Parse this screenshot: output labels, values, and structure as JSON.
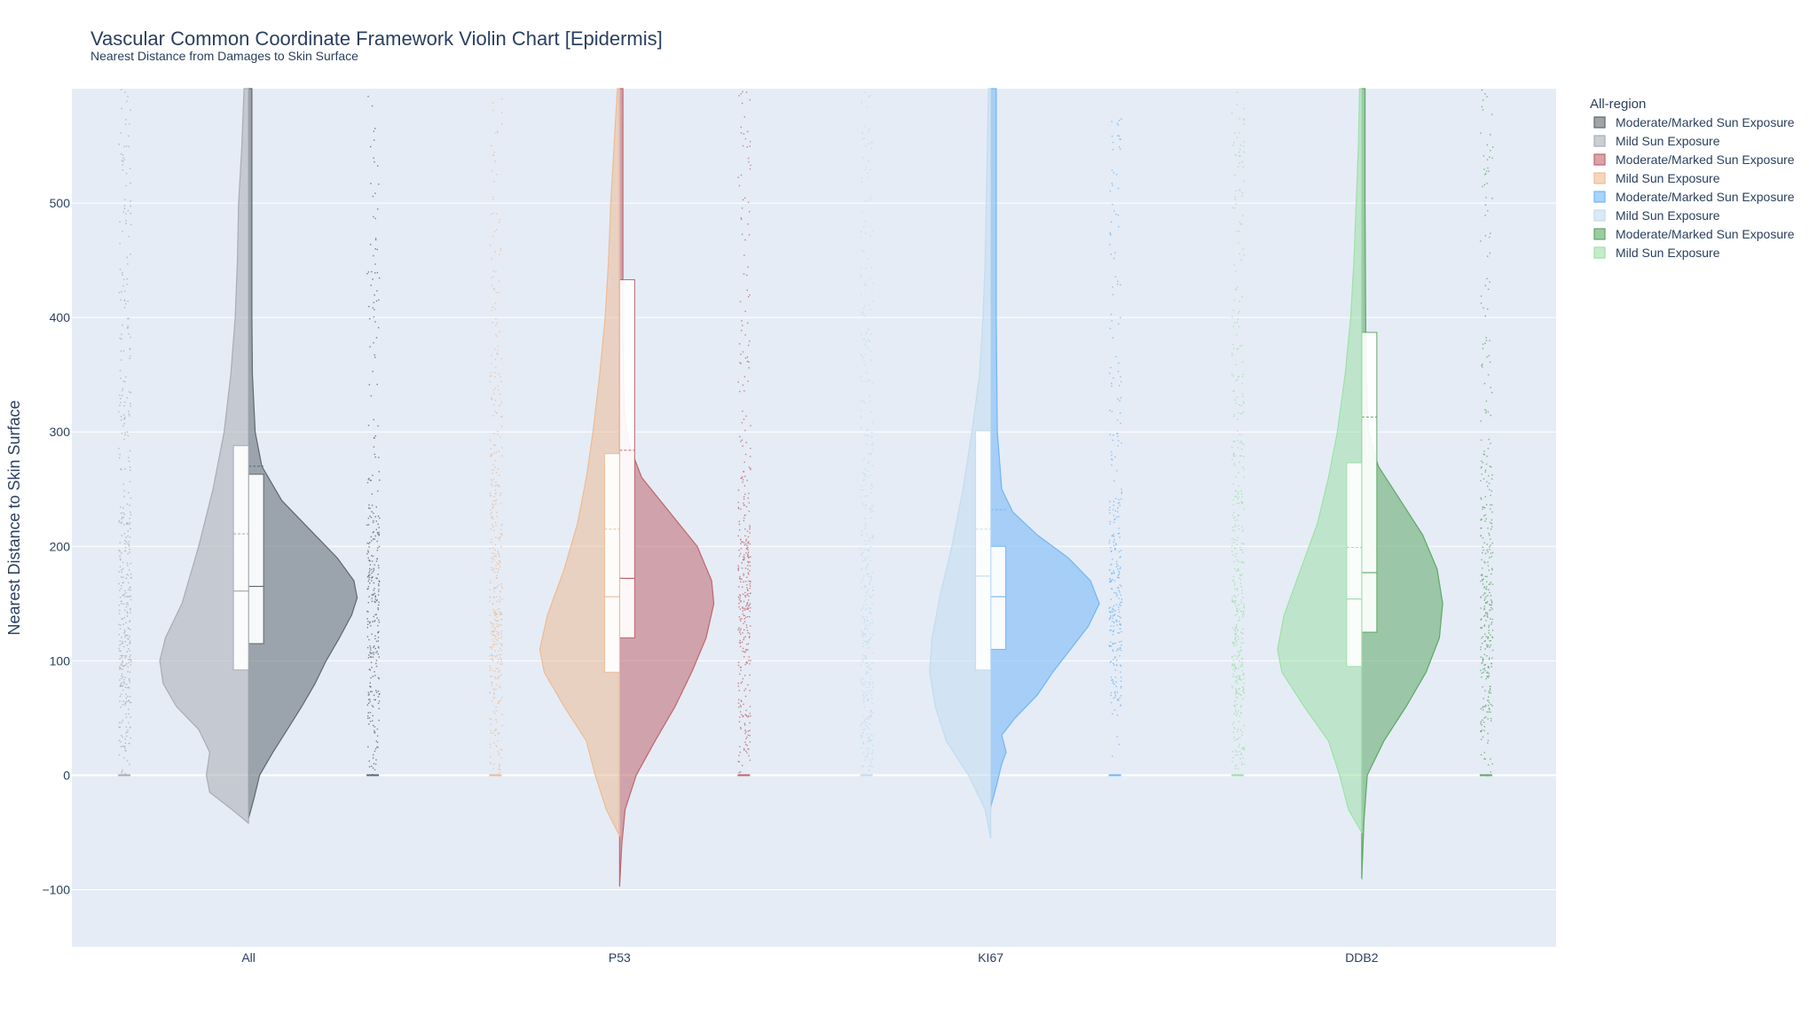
{
  "chart_data": {
    "type": "violin",
    "title": "Vascular Common Coordinate Framework Violin Chart [Epidermis]",
    "subtitle": "Nearest Distance from Damages to Skin Surface",
    "xlabel": "",
    "ylabel": "Nearest Distance to Skin Surface",
    "ylim": [
      -150,
      600
    ],
    "yticks": [
      -100,
      0,
      100,
      200,
      300,
      400,
      500
    ],
    "ytick_labels": [
      "−100",
      "0",
      "100",
      "200",
      "300",
      "400",
      "500"
    ],
    "categories": [
      "All",
      "P53",
      "KI67",
      "DDB2"
    ],
    "grid": true,
    "legend": {
      "title": "All-region",
      "position": "right"
    },
    "series": [
      {
        "name": "Moderate/Marked Sun Exposure",
        "category": "All",
        "side": "positive",
        "color": "#5f6770",
        "box": {
          "q1": 115,
          "median": 165,
          "q3": 263,
          "mean": 270
        },
        "range": [
          -38,
          600
        ],
        "density": [
          [
            -38,
            0.0
          ],
          [
            -20,
            0.05
          ],
          [
            0,
            0.1
          ],
          [
            20,
            0.22
          ],
          [
            40,
            0.35
          ],
          [
            60,
            0.48
          ],
          [
            80,
            0.6
          ],
          [
            100,
            0.7
          ],
          [
            120,
            0.82
          ],
          [
            140,
            0.93
          ],
          [
            155,
            0.98
          ],
          [
            170,
            0.95
          ],
          [
            190,
            0.8
          ],
          [
            210,
            0.6
          ],
          [
            240,
            0.3
          ],
          [
            270,
            0.12
          ],
          [
            300,
            0.06
          ],
          [
            350,
            0.035
          ],
          [
            400,
            0.03
          ],
          [
            450,
            0.03
          ],
          [
            500,
            0.03
          ],
          [
            550,
            0.03
          ],
          [
            600,
            0.03
          ]
        ]
      },
      {
        "name": "Mild Sun Exposure",
        "category": "All",
        "side": "negative",
        "color": "#a9adb4",
        "box": {
          "q1": 92,
          "median": 161,
          "q3": 288,
          "mean": 211
        },
        "range": [
          -42,
          600
        ],
        "density": [
          [
            -42,
            0.0
          ],
          [
            -30,
            0.15
          ],
          [
            -15,
            0.35
          ],
          [
            0,
            0.38
          ],
          [
            20,
            0.35
          ],
          [
            40,
            0.45
          ],
          [
            60,
            0.65
          ],
          [
            80,
            0.77
          ],
          [
            100,
            0.8
          ],
          [
            120,
            0.75
          ],
          [
            150,
            0.6
          ],
          [
            200,
            0.45
          ],
          [
            250,
            0.32
          ],
          [
            300,
            0.22
          ],
          [
            350,
            0.16
          ],
          [
            400,
            0.12
          ],
          [
            450,
            0.1
          ],
          [
            500,
            0.09
          ],
          [
            550,
            0.06
          ],
          [
            600,
            0.04
          ]
        ]
      },
      {
        "name": "Moderate/Marked Sun Exposure",
        "category": "P53",
        "side": "positive",
        "color": "#c0666d",
        "box": {
          "q1": 120,
          "median": 172,
          "q3": 433,
          "mean": 284
        },
        "range": [
          -97,
          600
        ],
        "density": [
          [
            -97,
            0.0
          ],
          [
            -60,
            0.02
          ],
          [
            -30,
            0.05
          ],
          [
            0,
            0.15
          ],
          [
            30,
            0.32
          ],
          [
            60,
            0.5
          ],
          [
            90,
            0.65
          ],
          [
            120,
            0.78
          ],
          [
            150,
            0.85
          ],
          [
            170,
            0.83
          ],
          [
            200,
            0.7
          ],
          [
            230,
            0.45
          ],
          [
            260,
            0.2
          ],
          [
            290,
            0.08
          ],
          [
            320,
            0.04
          ],
          [
            400,
            0.03
          ],
          [
            500,
            0.03
          ],
          [
            600,
            0.03
          ]
        ]
      },
      {
        "name": "Mild Sun Exposure",
        "category": "P53",
        "side": "negative",
        "color": "#edbb95",
        "box": {
          "q1": 90,
          "median": 156,
          "q3": 281,
          "mean": 215
        },
        "range": [
          -53,
          600
        ],
        "density": [
          [
            -53,
            0.0
          ],
          [
            -30,
            0.12
          ],
          [
            0,
            0.22
          ],
          [
            30,
            0.3
          ],
          [
            60,
            0.5
          ],
          [
            90,
            0.68
          ],
          [
            110,
            0.72
          ],
          [
            140,
            0.65
          ],
          [
            180,
            0.5
          ],
          [
            220,
            0.38
          ],
          [
            260,
            0.3
          ],
          [
            300,
            0.24
          ],
          [
            350,
            0.18
          ],
          [
            400,
            0.13
          ],
          [
            450,
            0.1
          ],
          [
            500,
            0.08
          ],
          [
            550,
            0.05
          ],
          [
            600,
            0.02
          ]
        ]
      },
      {
        "name": "Moderate/Marked Sun Exposure",
        "category": "KI67",
        "side": "positive",
        "color": "#72b6f5",
        "box": {
          "q1": 110,
          "median": 156,
          "q3": 200,
          "mean": 232
        },
        "range": [
          -28,
          600
        ],
        "density": [
          [
            -28,
            0.0
          ],
          [
            -10,
            0.05
          ],
          [
            10,
            0.1
          ],
          [
            20,
            0.14
          ],
          [
            35,
            0.1
          ],
          [
            50,
            0.22
          ],
          [
            70,
            0.42
          ],
          [
            90,
            0.56
          ],
          [
            110,
            0.72
          ],
          [
            130,
            0.88
          ],
          [
            150,
            0.98
          ],
          [
            170,
            0.9
          ],
          [
            190,
            0.7
          ],
          [
            210,
            0.42
          ],
          [
            230,
            0.2
          ],
          [
            250,
            0.1
          ],
          [
            300,
            0.06
          ],
          [
            400,
            0.05
          ],
          [
            500,
            0.05
          ],
          [
            600,
            0.05
          ]
        ]
      },
      {
        "name": "Mild Sun Exposure",
        "category": "KI67",
        "side": "negative",
        "color": "#c2dcf0",
        "box": {
          "q1": 92,
          "median": 174,
          "q3": 301,
          "mean": 215
        },
        "range": [
          -55,
          600
        ],
        "density": [
          [
            -55,
            0.0
          ],
          [
            -30,
            0.05
          ],
          [
            0,
            0.2
          ],
          [
            30,
            0.4
          ],
          [
            60,
            0.5
          ],
          [
            90,
            0.55
          ],
          [
            120,
            0.53
          ],
          [
            160,
            0.45
          ],
          [
            200,
            0.35
          ],
          [
            250,
            0.25
          ],
          [
            300,
            0.17
          ],
          [
            350,
            0.1
          ],
          [
            400,
            0.07
          ],
          [
            450,
            0.05
          ],
          [
            500,
            0.04
          ],
          [
            550,
            0.03
          ],
          [
            600,
            0.02
          ]
        ]
      },
      {
        "name": "Moderate/Marked Sun Exposure",
        "category": "DDB2",
        "side": "positive",
        "color": "#5fa866",
        "box": {
          "q1": 125,
          "median": 177,
          "q3": 387,
          "mean": 313
        },
        "range": [
          -90,
          600
        ],
        "density": [
          [
            -90,
            0.0
          ],
          [
            -40,
            0.02
          ],
          [
            0,
            0.05
          ],
          [
            30,
            0.2
          ],
          [
            60,
            0.4
          ],
          [
            90,
            0.58
          ],
          [
            120,
            0.7
          ],
          [
            150,
            0.73
          ],
          [
            180,
            0.68
          ],
          [
            210,
            0.55
          ],
          [
            240,
            0.35
          ],
          [
            270,
            0.15
          ],
          [
            300,
            0.06
          ],
          [
            350,
            0.04
          ],
          [
            400,
            0.035
          ],
          [
            500,
            0.03
          ],
          [
            600,
            0.03
          ]
        ]
      },
      {
        "name": "Mild Sun Exposure",
        "category": "DDB2",
        "side": "negative",
        "color": "#9fe0a8",
        "box": {
          "q1": 95,
          "median": 154,
          "q3": 273,
          "mean": 199
        },
        "range": [
          -50,
          600
        ],
        "density": [
          [
            -50,
            0.0
          ],
          [
            -30,
            0.12
          ],
          [
            0,
            0.2
          ],
          [
            30,
            0.3
          ],
          [
            60,
            0.52
          ],
          [
            90,
            0.72
          ],
          [
            110,
            0.76
          ],
          [
            140,
            0.7
          ],
          [
            180,
            0.55
          ],
          [
            220,
            0.4
          ],
          [
            260,
            0.3
          ],
          [
            300,
            0.22
          ],
          [
            350,
            0.15
          ],
          [
            400,
            0.1
          ],
          [
            450,
            0.07
          ],
          [
            500,
            0.05
          ],
          [
            550,
            0.03
          ],
          [
            600,
            0.02
          ]
        ]
      }
    ]
  }
}
